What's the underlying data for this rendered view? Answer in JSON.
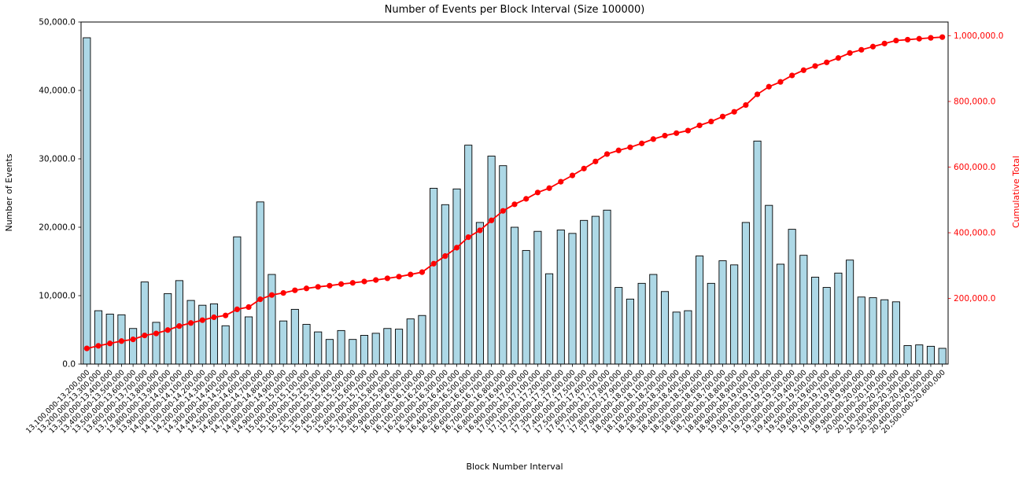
{
  "chart_data": {
    "type": "bar",
    "title": "Number of Events per Block Interval (Size 100000)",
    "xlabel": "Block Number Interval",
    "ylabel_left": "Number of Events",
    "ylabel_right": "Cumulative Total",
    "grid": false,
    "legend_position": "none",
    "bar_color": "#ADD8E6",
    "bar_edge_color": "#000000",
    "line_color": "#FF0000",
    "axis_color": "#000000",
    "left_axis": {
      "range": [
        0,
        50000
      ],
      "ticks": [
        0,
        10000,
        20000,
        30000,
        40000,
        50000
      ],
      "tick_labels": [
        "0.0",
        "10,000.0",
        "20,000.0",
        "30,000.0",
        "40,000.0",
        "50,000.0"
      ]
    },
    "right_axis": {
      "range": [
        0,
        1042000
      ],
      "ticks": [
        200000,
        400000,
        600000,
        800000,
        1000000
      ],
      "tick_labels": [
        "200,000.0",
        "400,000.0",
        "600,000.0",
        "800,000.0",
        "1,000,000.0"
      ]
    },
    "categories": [
      "13,100,000-13,200,000",
      "13,200,000-13,300,000",
      "13,300,000-13,400,000",
      "13,400,000-13,500,000",
      "13,500,000-13,600,000",
      "13,600,000-13,700,000",
      "13,700,000-13,800,000",
      "13,800,000-13,900,000",
      "13,900,000-14,000,000",
      "14,000,000-14,100,000",
      "14,100,000-14,200,000",
      "14,200,000-14,300,000",
      "14,300,000-14,400,000",
      "14,400,000-14,500,000",
      "14,500,000-14,600,000",
      "14,600,000-14,700,000",
      "14,700,000-14,800,000",
      "14,800,000-14,900,000",
      "14,900,000-15,000,000",
      "15,000,000-15,100,000",
      "15,100,000-15,200,000",
      "15,200,000-15,300,000",
      "15,300,000-15,400,000",
      "15,400,000-15,500,000",
      "15,500,000-15,600,000",
      "15,600,000-15,700,000",
      "15,700,000-15,800,000",
      "15,800,000-15,900,000",
      "15,900,000-16,000,000",
      "16,000,000-16,100,000",
      "16,100,000-16,200,000",
      "16,200,000-16,300,000",
      "16,300,000-16,400,000",
      "16,400,000-16,500,000",
      "16,500,000-16,600,000",
      "16,600,000-16,700,000",
      "16,700,000-16,800,000",
      "16,800,000-16,900,000",
      "16,900,000-17,000,000",
      "17,000,000-17,100,000",
      "17,100,000-17,200,000",
      "17,200,000-17,300,000",
      "17,300,000-17,400,000",
      "17,400,000-17,500,000",
      "17,500,000-17,600,000",
      "17,600,000-17,700,000",
      "17,700,000-17,800,000",
      "17,800,000-17,900,000",
      "17,900,000-18,000,000",
      "18,000,000-18,100,000",
      "18,100,000-18,200,000",
      "18,200,000-18,300,000",
      "18,300,000-18,400,000",
      "18,400,000-18,500,000",
      "18,500,000-18,600,000",
      "18,600,000-18,700,000",
      "18,700,000-18,800,000",
      "18,800,000-18,900,000",
      "18,900,000-19,000,000",
      "19,000,000-19,100,000",
      "19,100,000-19,200,000",
      "19,200,000-19,300,000",
      "19,300,000-19,400,000",
      "19,400,000-19,500,000",
      "19,500,000-19,600,000",
      "19,600,000-19,700,000",
      "19,700,000-19,800,000",
      "19,800,000-19,900,000",
      "19,900,000-20,000,000",
      "20,000,000-20,100,000",
      "20,100,000-20,200,000",
      "20,200,000-20,300,000",
      "20,300,000-20,400,000",
      "20,400,000-20,500,000",
      "20,500,000-20,600,000"
    ],
    "series": [
      {
        "name": "Number of Events",
        "type": "bar",
        "axis": "left",
        "values": [
          47700,
          7800,
          7300,
          7200,
          5200,
          12000,
          6100,
          10300,
          12200,
          9300,
          8600,
          8800,
          5600,
          18600,
          6900,
          23700,
          13100,
          6300,
          8000,
          5800,
          4700,
          3600,
          4900,
          3600,
          4200,
          4500,
          5200,
          5100,
          6600,
          7100,
          25700,
          23300,
          25600,
          32000,
          20700,
          30400,
          29000,
          20000,
          16600,
          19400,
          13200,
          19600,
          19100,
          21000,
          21600,
          22500,
          11200,
          9500,
          11800,
          13100,
          10600,
          7600,
          7800,
          15800,
          11800,
          15100,
          14500,
          20700,
          32600,
          23200,
          14600,
          19700,
          15900,
          12700,
          11200,
          13300,
          15200,
          9800,
          9700,
          9400,
          9100,
          2700,
          2800,
          2600,
          2300
        ]
      },
      {
        "name": "Cumulative Total",
        "type": "line",
        "axis": "right",
        "values": [
          47700,
          55500,
          62800,
          70000,
          75200,
          87200,
          93300,
          103600,
          115800,
          125100,
          133700,
          142500,
          148100,
          166700,
          173600,
          197300,
          210400,
          216700,
          224700,
          230500,
          235200,
          238800,
          243700,
          247300,
          251500,
          256000,
          261200,
          266300,
          272900,
          280000,
          305700,
          329000,
          354600,
          386600,
          407300,
          437700,
          466700,
          486700,
          503300,
          522700,
          535900,
          555500,
          574600,
          595600,
          617200,
          639700,
          650900,
          660400,
          672200,
          685300,
          695900,
          703500,
          711300,
          727100,
          738900,
          754000,
          768500,
          789200,
          821800,
          845000,
          859600,
          879300,
          895200,
          907900,
          919100,
          932400,
          947600,
          957400,
          967100,
          976500,
          985600,
          988300,
          991100,
          993700,
          996000
        ]
      }
    ]
  }
}
